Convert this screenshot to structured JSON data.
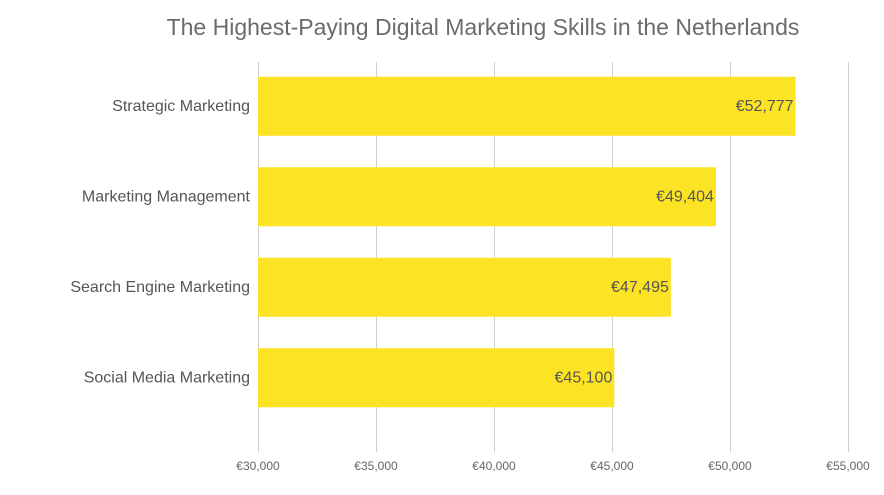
{
  "chart_data": {
    "type": "bar",
    "orientation": "horizontal",
    "title": "The Highest-Paying Digital Marketing Skills in the Netherlands",
    "categories": [
      "Strategic Marketing",
      "Marketing Management",
      "Search Engine Marketing",
      "Social Media Marketing"
    ],
    "values": [
      52777,
      49404,
      47495,
      45100
    ],
    "value_labels": [
      "€52,777",
      "€49,404",
      "€47,495",
      "€45,100"
    ],
    "xlim": [
      30000,
      55000
    ],
    "x_ticks": [
      30000,
      35000,
      40000,
      45000,
      50000,
      55000
    ],
    "x_tick_labels": [
      "€30,000",
      "€35,000",
      "€40,000",
      "€45,000",
      "€50,000",
      "€55,000"
    ],
    "grid": "vertical",
    "legend": "none",
    "bar_color": "#fce424"
  }
}
